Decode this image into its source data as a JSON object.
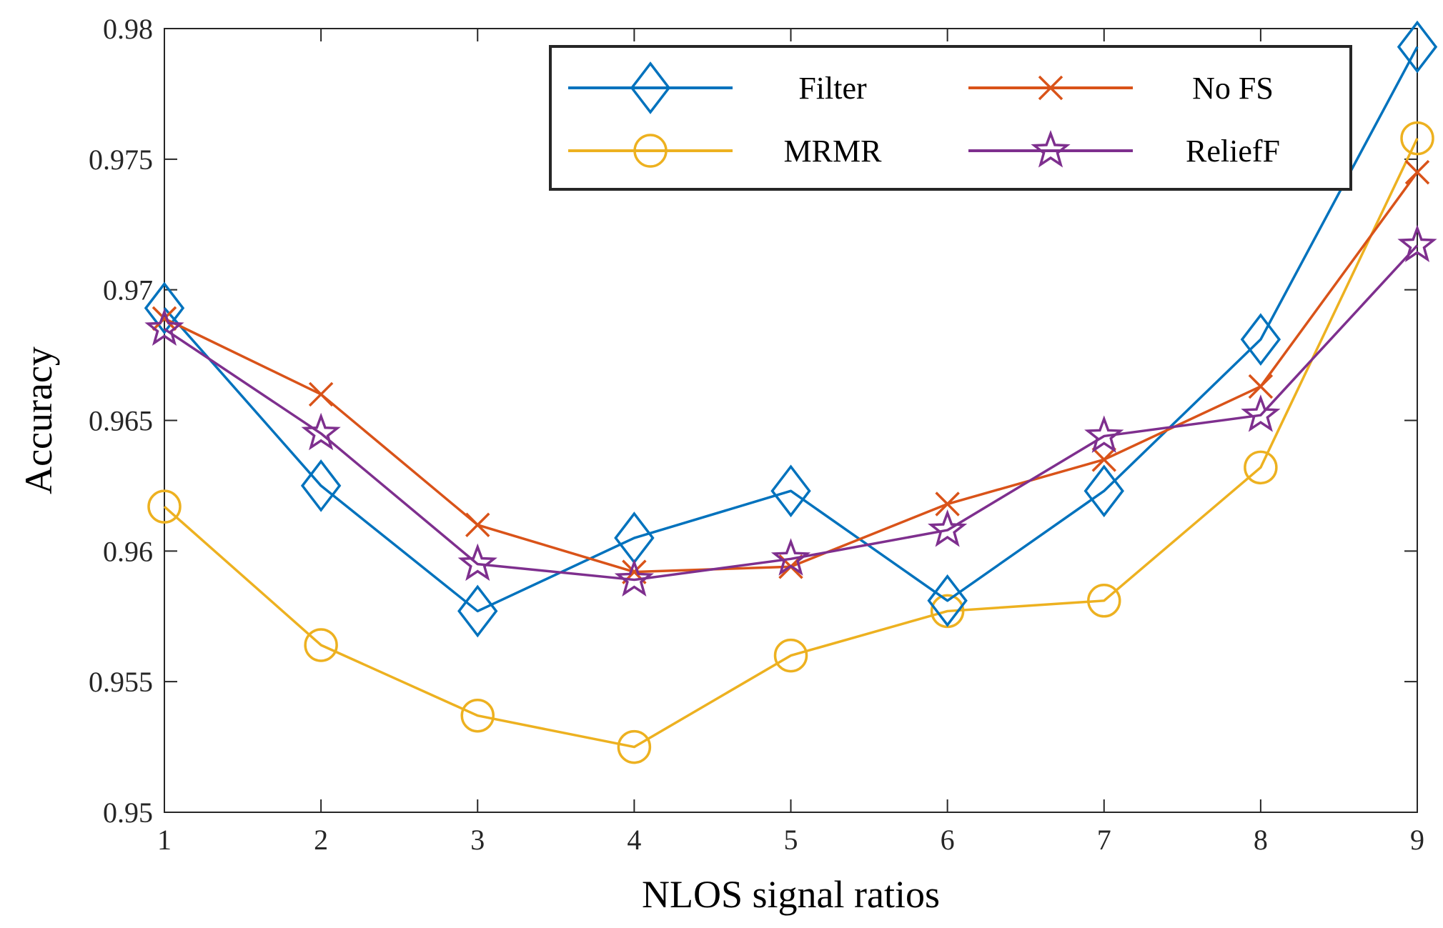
{
  "chart_data": {
    "type": "line",
    "title": "",
    "xlabel": "NLOS signal ratios",
    "ylabel": "Accuracy",
    "x": [
      1,
      2,
      3,
      4,
      5,
      6,
      7,
      8,
      9
    ],
    "xlim": [
      1,
      9
    ],
    "ylim": [
      0.95,
      0.98
    ],
    "xticks": [
      "1",
      "2",
      "3",
      "4",
      "5",
      "6",
      "7",
      "8",
      "9"
    ],
    "yticks": [
      "0.95",
      "0.955",
      "0.96",
      "0.965",
      "0.97",
      "0.975",
      "0.98"
    ],
    "legend_position": "top-right",
    "series": [
      {
        "name": "Filter",
        "marker": "diamond",
        "color": "#0072BD",
        "values": [
          0.9693,
          0.9625,
          0.9577,
          0.9605,
          0.9623,
          0.9581,
          0.9623,
          0.9681,
          0.9793
        ]
      },
      {
        "name": "No FS",
        "marker": "x",
        "color": "#D95319",
        "values": [
          0.9689,
          0.966,
          0.961,
          0.9592,
          0.9594,
          0.9618,
          0.9635,
          0.9663,
          0.9745
        ]
      },
      {
        "name": "MRMR",
        "marker": "circle",
        "color": "#EDB120",
        "values": [
          0.9617,
          0.9564,
          0.9537,
          0.9525,
          0.956,
          0.9577,
          0.9581,
          0.9632,
          0.9758
        ]
      },
      {
        "name": "ReliefF",
        "marker": "star",
        "color": "#7E2F8E",
        "values": [
          0.9685,
          0.9645,
          0.9595,
          0.9589,
          0.9597,
          0.9608,
          0.9644,
          0.9652,
          0.9717
        ]
      }
    ]
  }
}
